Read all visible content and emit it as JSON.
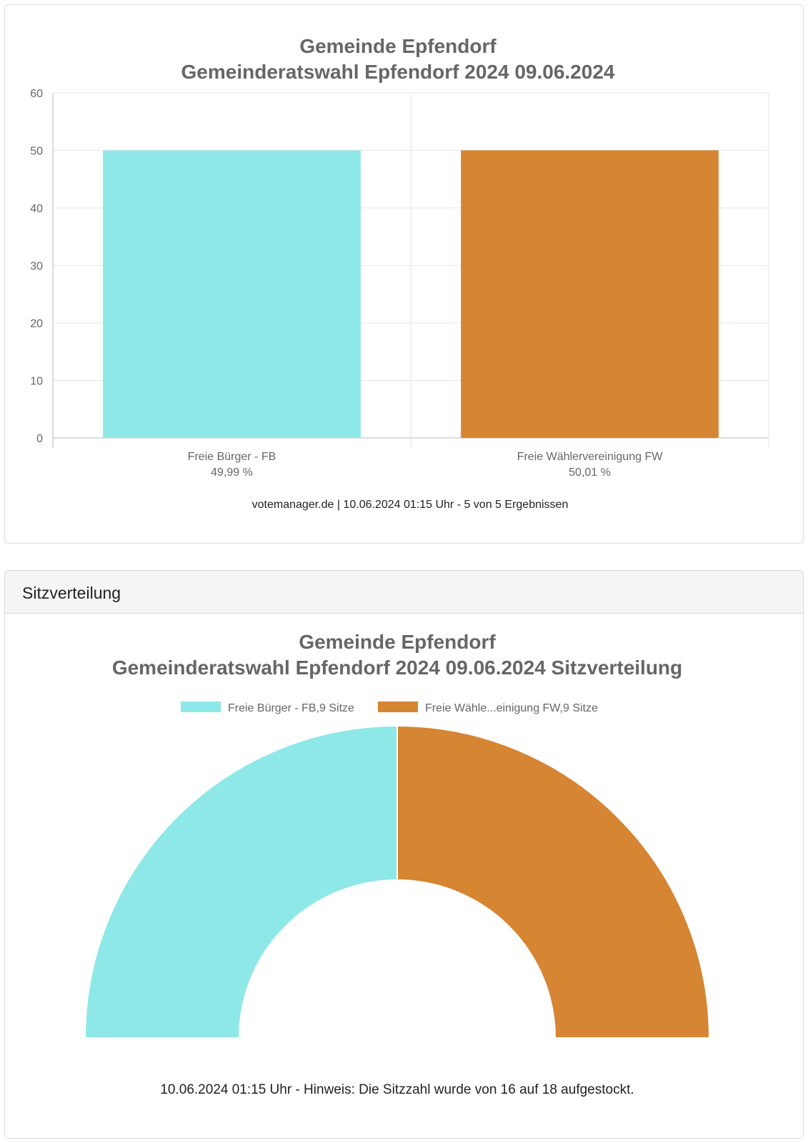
{
  "bar_card": {
    "footer": "votemanager.de | 10.06.2024 01:15 Uhr - 5 von 5 Ergebnissen"
  },
  "seat_card": {
    "header": "Sitzverteilung",
    "footer": "10.06.2024 01:15 Uhr - Hinweis: Die Sitzzahl wurde von 16 auf 18 aufgestockt."
  },
  "chart_data": [
    {
      "type": "bar",
      "title": [
        "Gemeinde Epfendorf",
        "Gemeinderatswahl Epfendorf 2024 09.06.2024"
      ],
      "categories": [
        "Freie Bürger - FB",
        "Freie Wählervereinigung FW"
      ],
      "category_sublabels": [
        "49,99 %",
        "50,01 %"
      ],
      "values": [
        49.99,
        50.01
      ],
      "colors": [
        "#8ee8e8",
        "#d68533"
      ],
      "ylim": [
        0,
        60
      ],
      "yticks": [
        0,
        10,
        20,
        30,
        40,
        50,
        60
      ],
      "xlabel": "",
      "ylabel": "",
      "grid": true
    },
    {
      "type": "pie",
      "subtype": "half-donut",
      "title": [
        "Gemeinde Epfendorf",
        "Gemeinderatswahl Epfendorf 2024 09.06.2024 Sitzverteilung"
      ],
      "labels": [
        "Freie Bürger - FB",
        "Freie Wählervereinigung FW"
      ],
      "legend_labels": [
        "Freie Bürger - FB,9 Sitze",
        "Freie Wähle...einigung FW,9 Sitze"
      ],
      "values": [
        9,
        9
      ],
      "colors": [
        "#8ee8e8",
        "#d68533"
      ],
      "legend_position": "top"
    }
  ]
}
